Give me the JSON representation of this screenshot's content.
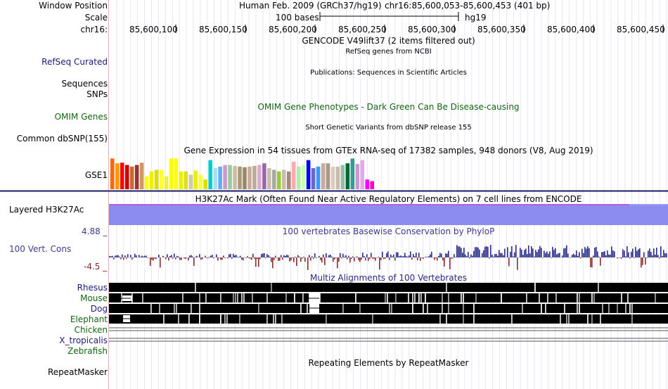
{
  "labels": {
    "window_position": "Window Position",
    "scale": "Scale",
    "chrom": "chr16:",
    "refseq": "RefSeq Curated",
    "sequences": "Sequences",
    "snps": "SNPs",
    "omim": "OMIM Genes",
    "dbsnp": "Common dbSNP(155)",
    "gse1": "GSE1",
    "h3k27ac": "Layered H3K27Ac",
    "cons": "100 Vert. Cons",
    "cons_max": "4.88 _",
    "cons_min": "-4.5 _",
    "repeatmasker": "RepeatMasker"
  },
  "header": {
    "assembly": "Human Feb. 2009 (GRCh37/hg19)",
    "position": "chr16:85,600,053-85,600,453 (401 bp)",
    "scale_text": "100 bases",
    "scale_db": "hg19"
  },
  "ruler": {
    "ticks": [
      "85,600,100",
      "85,600,150",
      "85,600,200",
      "85,600,250",
      "85,600,300",
      "85,600,350",
      "85,600,400",
      "85,600,450"
    ]
  },
  "tracks": {
    "gencode": "GENCODE V49lift37 (2 items filtered out)",
    "refseq_title": "RefSeq genes from NCBI",
    "publications": "Publications: Sequences in Scientific Articles",
    "omim_title": "OMIM Gene Phenotypes - Dark Green Can Be Disease-causing",
    "dbsnp_title": "Short Genetic Variants from dbSNP release 155",
    "gtex_title": "Gene Expression in 54 tissues from GTEx RNA-seq of 17382 samples, 948 donors (V8, Aug 2019)",
    "h3k27ac_title": "H3K27Ac Mark (Often Found Near Active Regulatory Elements) on 7 cell lines from ENCODE",
    "cons_title": "100 vertebrates Basewise Conservation by PhyloP",
    "multiz_title": "Multiz Alignments of 100 Vertebrates",
    "repeat_title": "Repeating Elements by RepeatMasker"
  },
  "species": [
    "Rhesus",
    "Mouse",
    "Dog",
    "Elephant",
    "Chicken",
    "X_tropicalis",
    "Zebrafish"
  ],
  "gtex_values": [
    0.95,
    0.8,
    0.82,
    0.75,
    0.7,
    0.75,
    0.82,
    0.4,
    0.55,
    0.6,
    0.6,
    0.4,
    0.95,
    0.95,
    0.55,
    0.55,
    0.45,
    0.58,
    0.45,
    0.3,
    0.9,
    0.65,
    0.7,
    0.75,
    0.75,
    0.72,
    0.7,
    0.68,
    0.7,
    0.72,
    0.75,
    0.8,
    0.65,
    0.6,
    0.55,
    0.6,
    0.55,
    0.85,
    0.7,
    0.75,
    0.9,
    0.65,
    0.7,
    0.8,
    0.8,
    0.7,
    0.7,
    0.75,
    0.8,
    0.95,
    0.78,
    0.9,
    0.3,
    0.25
  ],
  "gtex_colors": [
    "#ff6600",
    "#ff9900",
    "#ff0000",
    "#cc0000",
    "#cc6633",
    "#993333",
    "#cc9966",
    "#ffff00",
    "#eeee00",
    "#dddd00",
    "#ffff33",
    "#eeee44",
    "#ffff00",
    "#ffff00",
    "#eeee00",
    "#dddd22",
    "#ccccaa",
    "#eeee00",
    "#ffff33",
    "#dddd00",
    "#00cccc",
    "#aaddee",
    "#66aaff",
    "#cc99cc",
    "#99cc99",
    "#ccbbaa",
    "#aa9977",
    "#998866",
    "#ccaa99",
    "#bbaa99",
    "#ddaacc",
    "#9966aa",
    "#ccbbaa",
    "#aaaa99",
    "#99cc33",
    "#ccbbaa",
    "#aa8877",
    "#ffaaaa",
    "#aaeeaa",
    "#ccffaa",
    "#0000ff",
    "#6666cc",
    "#3399ff",
    "#ccaa99",
    "#aa9988",
    "#ddccbb",
    "#ccbbaa",
    "#99bbaa",
    "#006633",
    "#339999",
    "#cc99cc",
    "#ddaaee",
    "#ff00ff",
    "#ff00cc"
  ]
}
